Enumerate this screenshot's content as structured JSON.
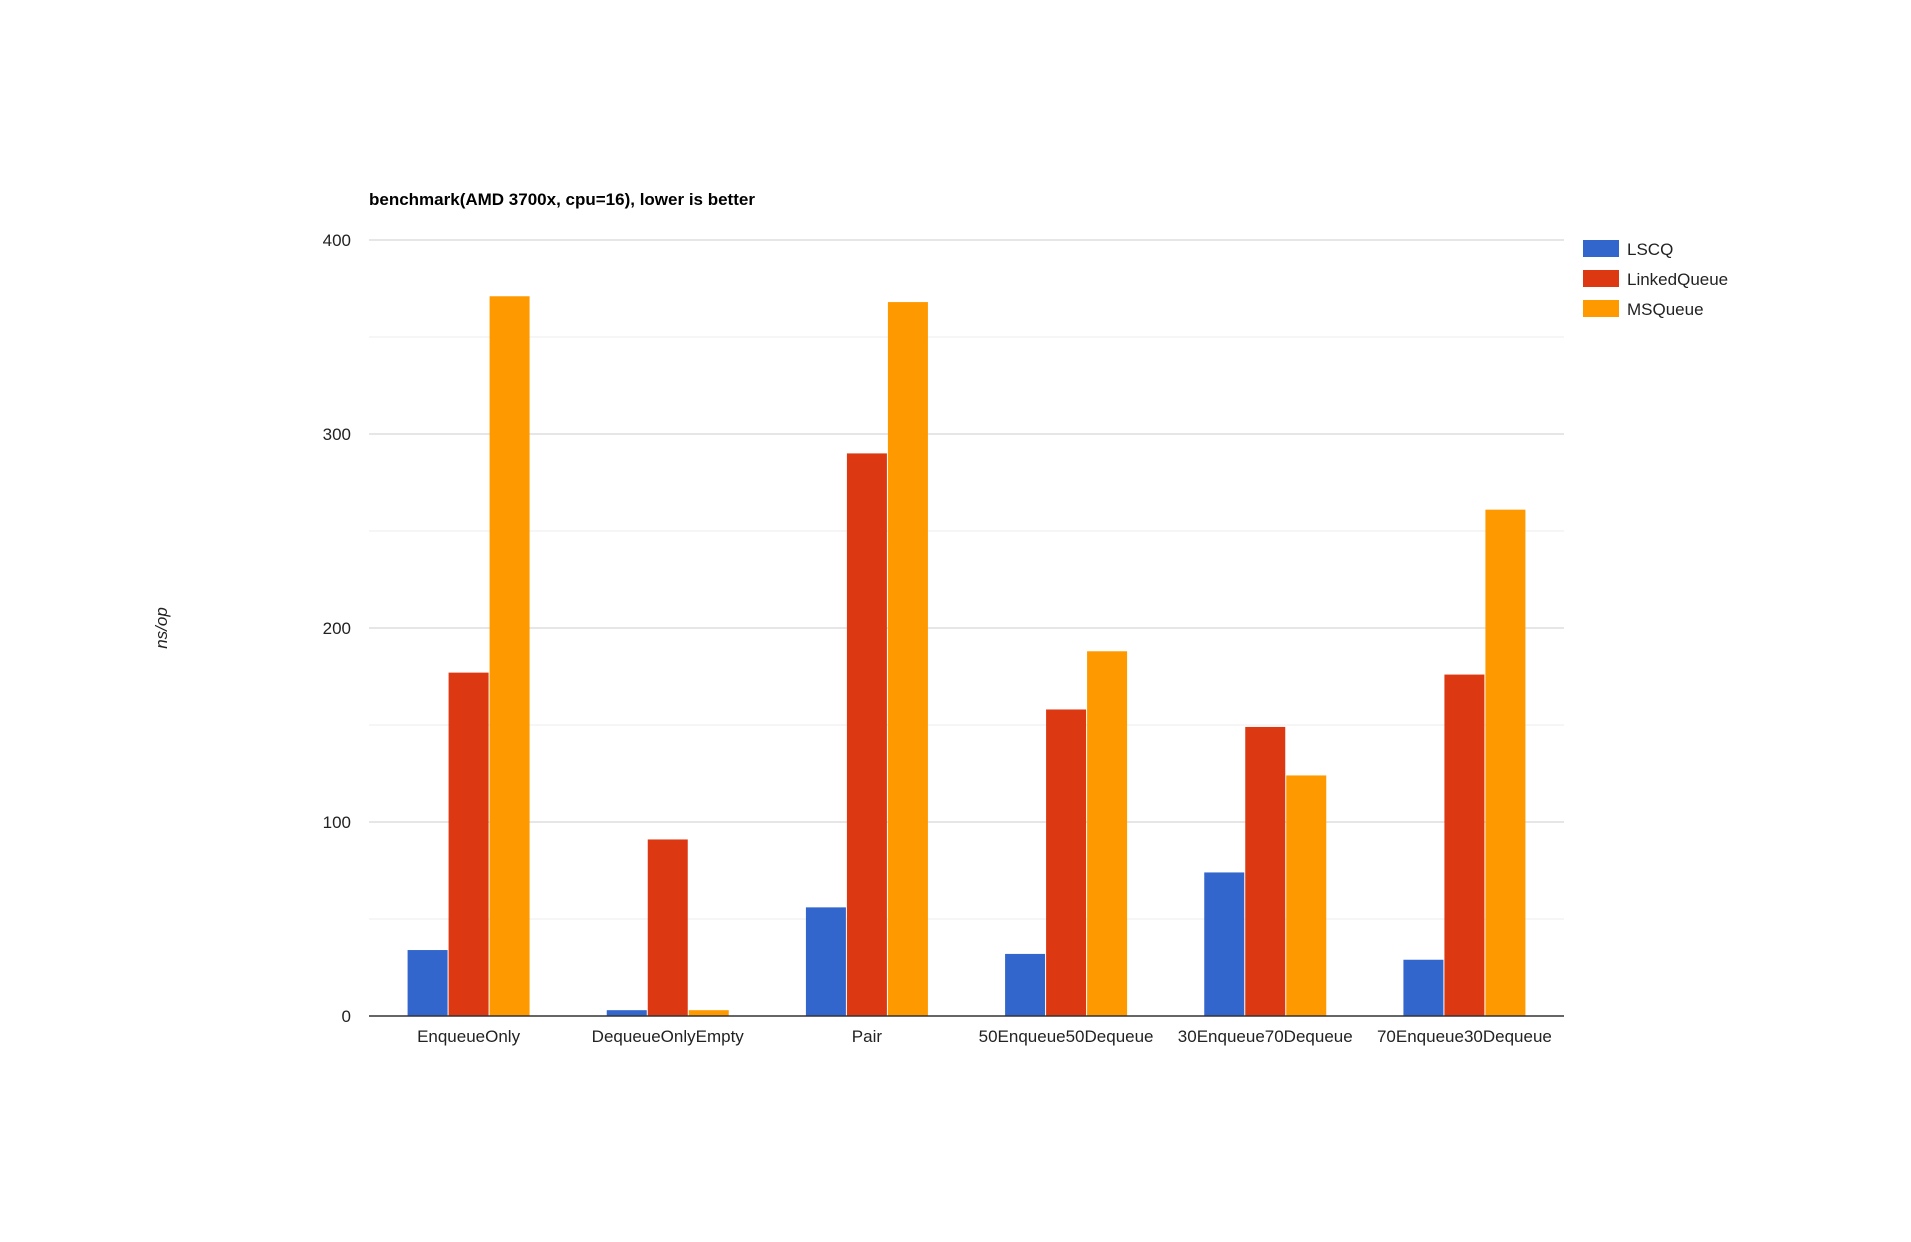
{
  "chart_data": {
    "type": "bar",
    "title": "benchmark(AMD 3700x, cpu=16), lower is better",
    "xlabel": "",
    "ylabel": "ns/op",
    "ylim": [
      0,
      400
    ],
    "yticks": [
      0,
      100,
      200,
      300,
      400
    ],
    "grid": true,
    "legend_position": "right",
    "categories": [
      "EnqueueOnly",
      "DequeueOnlyEmpty",
      "Pair",
      "50Enqueue50Dequeue",
      "30Enqueue70Dequeue",
      "70Enqueue30Dequeue"
    ],
    "series": [
      {
        "name": "LSCQ",
        "color": "#3366cc",
        "values": [
          34,
          3,
          56,
          32,
          74,
          29
        ]
      },
      {
        "name": "LinkedQueue",
        "color": "#dc3912",
        "values": [
          177,
          91,
          290,
          158,
          149,
          176
        ]
      },
      {
        "name": "MSQueue",
        "color": "#ff9900",
        "values": [
          371,
          3,
          368,
          188,
          124,
          261
        ]
      }
    ]
  }
}
